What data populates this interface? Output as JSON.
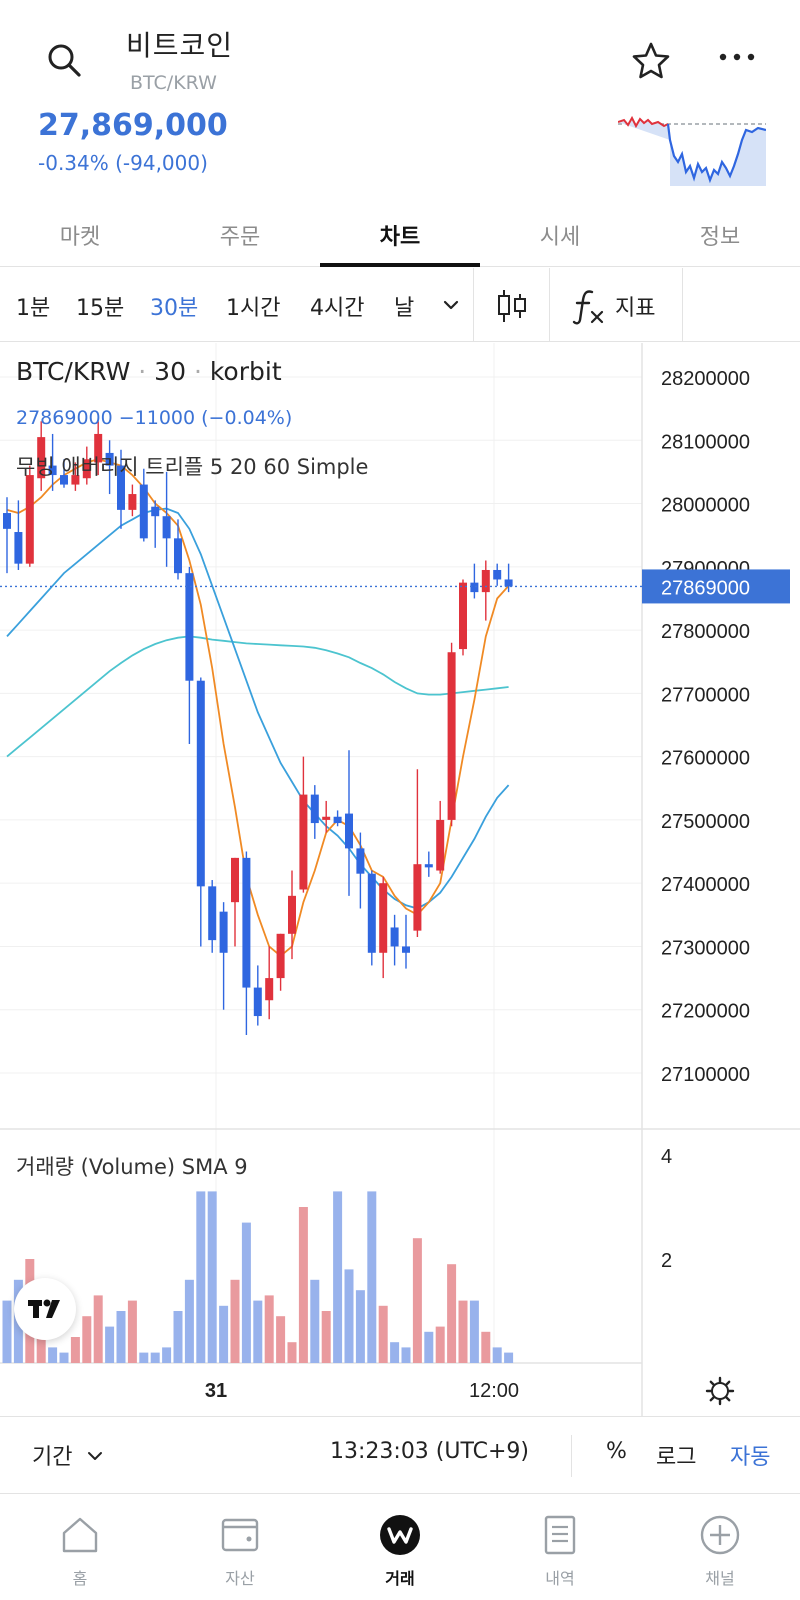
{
  "header": {
    "title": "비트코인",
    "pair": "BTC/KRW",
    "price": "27,869,000",
    "change": "-0.34% (-94,000)",
    "icons": [
      "search-icon",
      "star-icon",
      "more-icon"
    ]
  },
  "tabs": [
    {
      "label": "마켓",
      "active": false
    },
    {
      "label": "주문",
      "active": false
    },
    {
      "label": "차트",
      "active": true
    },
    {
      "label": "시세",
      "active": false
    },
    {
      "label": "정보",
      "active": false
    }
  ],
  "intervals": [
    {
      "label": "1분",
      "selected": false
    },
    {
      "label": "15분",
      "selected": false
    },
    {
      "label": "30분",
      "selected": true
    },
    {
      "label": "1시간",
      "selected": false
    },
    {
      "label": "4시간",
      "selected": false
    },
    {
      "label": "날",
      "selected": false
    }
  ],
  "indicator_label": "지표",
  "chart": {
    "symbol": "BTC/KRW",
    "interval": "30",
    "exchange": "korbit",
    "last_info": "27869000  −11000 (−0.04%)",
    "ma_label": "무빙 애버리지 트리플 5 20 60 Simple",
    "volume_label": "거래량 (Volume) SMA 9",
    "last_price_label": "27869000",
    "colors": {
      "up": "#e0323c",
      "down": "#2f66e0",
      "ma5": "#f08a24",
      "ma20": "#3aa0dc",
      "ma60": "#4cc4cf",
      "accent": "#3c73d6"
    }
  },
  "chart_data": {
    "type": "candlestick",
    "y_ticks": [
      28200000,
      28100000,
      28000000,
      27900000,
      27800000,
      27700000,
      27600000,
      27500000,
      27400000,
      27300000,
      27200000,
      27100000
    ],
    "ylim": [
      27050000,
      28250000
    ],
    "volume_ticks": [
      4,
      2
    ],
    "volume_ylim": [
      0,
      4.5
    ],
    "x_ticks": [
      "31",
      "12:00"
    ],
    "last_price": 27869000,
    "candles": [
      {
        "o": 27985000,
        "h": 28010000,
        "l": 27890000,
        "c": 27960000
      },
      {
        "o": 27955000,
        "h": 28005000,
        "l": 27895000,
        "c": 27905000
      },
      {
        "o": 27905000,
        "h": 28060000,
        "l": 27900000,
        "c": 28045000
      },
      {
        "o": 28040000,
        "h": 28130000,
        "l": 28020000,
        "c": 28105000
      },
      {
        "o": 28060000,
        "h": 28110000,
        "l": 28020000,
        "c": 28045000
      },
      {
        "o": 28045000,
        "h": 28070000,
        "l": 28025000,
        "c": 28030000
      },
      {
        "o": 28030000,
        "h": 28065000,
        "l": 28020000,
        "c": 28045000
      },
      {
        "o": 28040000,
        "h": 28090000,
        "l": 28030000,
        "c": 28070000
      },
      {
        "o": 28065000,
        "h": 28130000,
        "l": 28045000,
        "c": 28110000
      },
      {
        "o": 28080000,
        "h": 28100000,
        "l": 28015000,
        "c": 28060000
      },
      {
        "o": 28060000,
        "h": 28085000,
        "l": 27960000,
        "c": 27990000
      },
      {
        "o": 27990000,
        "h": 28030000,
        "l": 27980000,
        "c": 28015000
      },
      {
        "o": 28030000,
        "h": 28055000,
        "l": 27940000,
        "c": 27945000
      },
      {
        "o": 27995000,
        "h": 28005000,
        "l": 27930000,
        "c": 27980000
      },
      {
        "o": 27980000,
        "h": 28050000,
        "l": 27900000,
        "c": 27945000
      },
      {
        "o": 27945000,
        "h": 27975000,
        "l": 27880000,
        "c": 27890000
      },
      {
        "o": 27890000,
        "h": 27900000,
        "l": 27620000,
        "c": 27720000
      },
      {
        "o": 27720000,
        "h": 27725000,
        "l": 27300000,
        "c": 27395000
      },
      {
        "o": 27395000,
        "h": 27405000,
        "l": 27290000,
        "c": 27310000
      },
      {
        "o": 27355000,
        "h": 27370000,
        "l": 27200000,
        "c": 27290000
      },
      {
        "o": 27370000,
        "h": 27440000,
        "l": 27300000,
        "c": 27440000
      },
      {
        "o": 27440000,
        "h": 27450000,
        "l": 27160000,
        "c": 27235000
      },
      {
        "o": 27235000,
        "h": 27270000,
        "l": 27175000,
        "c": 27190000
      },
      {
        "o": 27215000,
        "h": 27300000,
        "l": 27185000,
        "c": 27250000
      },
      {
        "o": 27250000,
        "h": 27320000,
        "l": 27230000,
        "c": 27320000
      },
      {
        "o": 27320000,
        "h": 27420000,
        "l": 27280000,
        "c": 27380000
      },
      {
        "o": 27390000,
        "h": 27600000,
        "l": 27385000,
        "c": 27540000
      },
      {
        "o": 27540000,
        "h": 27555000,
        "l": 27470000,
        "c": 27495000
      },
      {
        "o": 27500000,
        "h": 27530000,
        "l": 27480000,
        "c": 27505000
      },
      {
        "o": 27505000,
        "h": 27515000,
        "l": 27490000,
        "c": 27495000
      },
      {
        "o": 27510000,
        "h": 27610000,
        "l": 27380000,
        "c": 27455000
      },
      {
        "o": 27455000,
        "h": 27480000,
        "l": 27360000,
        "c": 27415000
      },
      {
        "o": 27415000,
        "h": 27420000,
        "l": 27270000,
        "c": 27290000
      },
      {
        "o": 27290000,
        "h": 27410000,
        "l": 27250000,
        "c": 27400000
      },
      {
        "o": 27330000,
        "h": 27350000,
        "l": 27270000,
        "c": 27300000
      },
      {
        "o": 27300000,
        "h": 27350000,
        "l": 27265000,
        "c": 27290000
      },
      {
        "o": 27325000,
        "h": 27580000,
        "l": 27315000,
        "c": 27430000
      },
      {
        "o": 27430000,
        "h": 27450000,
        "l": 27410000,
        "c": 27425000
      },
      {
        "o": 27420000,
        "h": 27530000,
        "l": 27415000,
        "c": 27500000
      },
      {
        "o": 27500000,
        "h": 27780000,
        "l": 27490000,
        "c": 27765000
      },
      {
        "o": 27770000,
        "h": 27880000,
        "l": 27760000,
        "c": 27875000
      },
      {
        "o": 27875000,
        "h": 27905000,
        "l": 27850000,
        "c": 27860000
      },
      {
        "o": 27860000,
        "h": 27910000,
        "l": 27815000,
        "c": 27895000
      },
      {
        "o": 27895000,
        "h": 27905000,
        "l": 27870000,
        "c": 27880000
      },
      {
        "o": 27880000,
        "h": 27905000,
        "l": 27860000,
        "c": 27869000
      }
    ],
    "volumes": [
      1.2,
      1.6,
      2.0,
      1.1,
      0.3,
      0.2,
      0.5,
      0.9,
      1.3,
      0.7,
      1.0,
      1.2,
      0.2,
      0.2,
      0.3,
      1.0,
      1.6,
      3.3,
      3.3,
      1.1,
      1.6,
      2.7,
      1.2,
      1.3,
      0.9,
      0.4,
      3.0,
      1.6,
      1.0,
      3.3,
      1.8,
      1.4,
      3.3,
      1.1,
      0.4,
      0.3,
      2.4,
      0.6,
      0.7,
      1.9,
      1.2,
      1.2,
      0.6,
      0.3,
      0.2
    ],
    "ma5": [
      27990000,
      27985000,
      27995000,
      28010000,
      28030000,
      28045000,
      28055000,
      28065000,
      28070000,
      28065000,
      28060000,
      28045000,
      28025000,
      28000000,
      27985000,
      27965000,
      27910000,
      27840000,
      27740000,
      27620000,
      27520000,
      27410000,
      27350000,
      27300000,
      27285000,
      27300000,
      27370000,
      27420000,
      27480000,
      27500000,
      27490000,
      27460000,
      27420000,
      27410000,
      27380000,
      27360000,
      27350000,
      27370000,
      27400000,
      27500000,
      27600000,
      27690000,
      27790000,
      27850000,
      27870000
    ],
    "ma20": [
      27790000,
      27810000,
      27830000,
      27850000,
      27870000,
      27890000,
      27905000,
      27920000,
      27935000,
      27950000,
      27965000,
      27975000,
      27985000,
      27990000,
      27992000,
      27985000,
      27960000,
      27920000,
      27870000,
      27820000,
      27770000,
      27720000,
      27670000,
      27630000,
      27590000,
      27560000,
      27530000,
      27510000,
      27490000,
      27475000,
      27455000,
      27430000,
      27410000,
      27390000,
      27375000,
      27365000,
      27360000,
      27370000,
      27385000,
      27410000,
      27440000,
      27470000,
      27505000,
      27535000,
      27555000
    ],
    "ma60": [
      27600000,
      27615000,
      27630000,
      27645000,
      27660000,
      27675000,
      27690000,
      27705000,
      27720000,
      27735000,
      27748000,
      27760000,
      27770000,
      27778000,
      27784000,
      27788000,
      27790000,
      27788000,
      27785000,
      27783000,
      27781000,
      27779000,
      27778000,
      27777000,
      27776000,
      27775000,
      27774000,
      27772000,
      27768000,
      27763000,
      27757000,
      27748000,
      27740000,
      27730000,
      27718000,
      27708000,
      27700000,
      27698000,
      27698000,
      27700000,
      27702000,
      27704000,
      27706000,
      27708000,
      27710000
    ]
  },
  "controls": {
    "period": "기간",
    "time": "13:23:03 (UTC+9)",
    "percent": "%",
    "log": "로그",
    "auto": "자동"
  },
  "nav": [
    {
      "label": "홈",
      "icon": "home-icon",
      "active": false
    },
    {
      "label": "자산",
      "icon": "wallet-icon",
      "active": false
    },
    {
      "label": "거래",
      "icon": "trade-icon",
      "active": true
    },
    {
      "label": "내역",
      "icon": "history-icon",
      "active": false
    },
    {
      "label": "채널",
      "icon": "channel-icon",
      "active": false
    }
  ]
}
